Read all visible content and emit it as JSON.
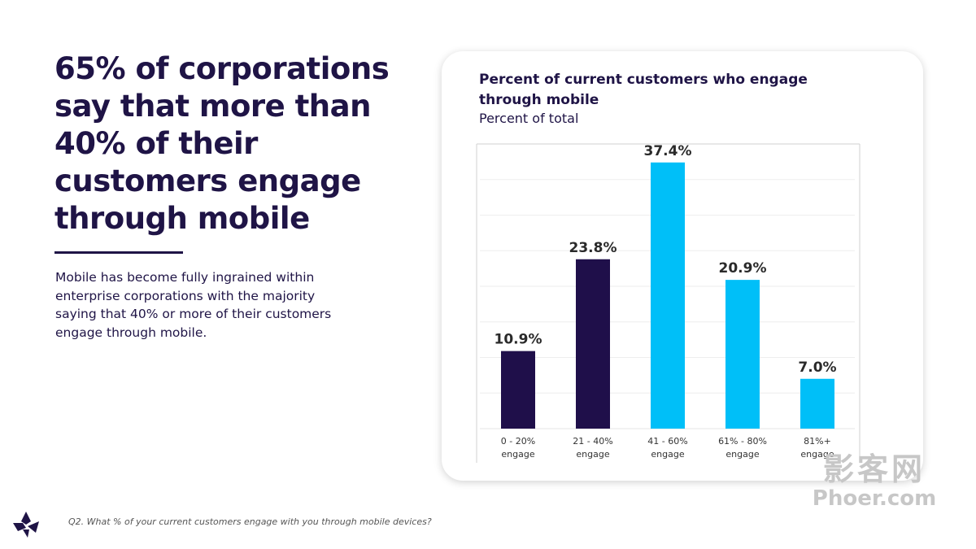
{
  "headline": "65% of corporations say that more than 40% of their customers engage through mobile",
  "body": "Mobile has become fully ingrained within enterprise corporations with the majority saying that 40% or more of their customers engage through mobile.",
  "footnote": "Q2. What % of your current customers engage with you through mobile devices?",
  "watermark": {
    "chinese": "影客网",
    "latin": "Phoer.com"
  },
  "colors": {
    "dark": "#1f0f4a",
    "light": "#00bff8",
    "text": "#1f1446"
  },
  "chart_data": {
    "type": "bar",
    "title": "Percent of current customers who engage through mobile",
    "subtitle": "Percent of total",
    "categories": [
      [
        "0 - 20%",
        "engage"
      ],
      [
        "21 - 40%",
        "engage"
      ],
      [
        "41 - 60%",
        "engage"
      ],
      [
        "61% - 80%",
        "engage"
      ],
      [
        "81%+",
        "engage"
      ]
    ],
    "values": [
      10.9,
      23.8,
      37.4,
      20.9,
      7.0
    ],
    "labels": [
      "10.9%",
      "23.8%",
      "37.4%",
      "20.9%",
      "7.0%"
    ],
    "bar_colors": [
      "#1f0f4a",
      "#1f0f4a",
      "#00bff8",
      "#00bff8",
      "#00bff8"
    ],
    "ylim": [
      0,
      40
    ],
    "grid": true,
    "xlabel": "",
    "ylabel": ""
  }
}
